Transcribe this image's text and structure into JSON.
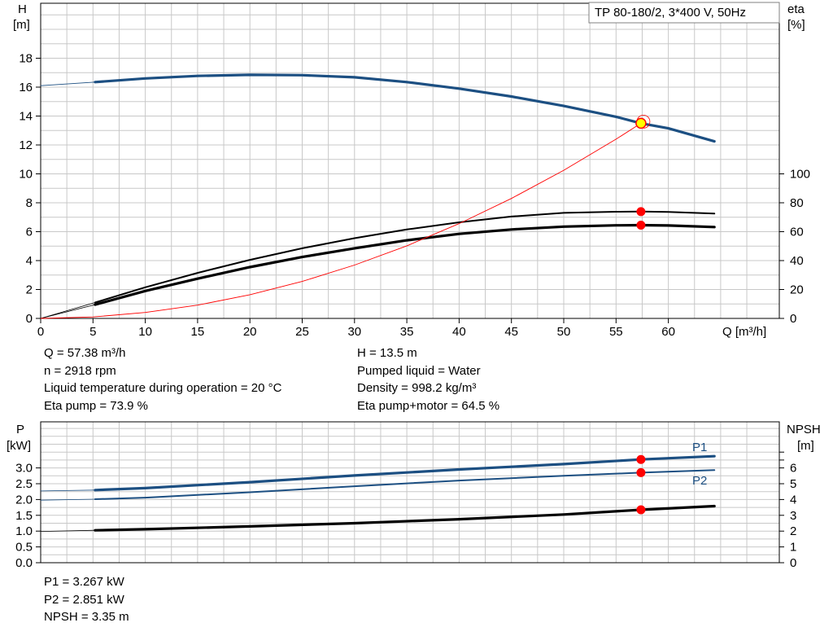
{
  "title_box": "TP 80-180/2, 3*400 V, 50Hz",
  "top_chart": {
    "left_axis": {
      "label_line1": "H",
      "label_line2": "[m]",
      "ticks": [
        "0",
        "2",
        "4",
        "6",
        "8",
        "10",
        "12",
        "14",
        "16",
        "18"
      ]
    },
    "right_axis": {
      "label_line1": "eta",
      "label_line2": "[%]",
      "ticks": [
        "0",
        "20",
        "40",
        "60",
        "80",
        "100"
      ]
    },
    "x_axis": {
      "label": "Q [m³/h]",
      "ticks": [
        "0",
        "5",
        "10",
        "15",
        "20",
        "25",
        "30",
        "35",
        "40",
        "45",
        "50",
        "55",
        "60"
      ]
    }
  },
  "info_left": [
    "Q = 57.38 m³/h",
    "n = 2918 rpm",
    "Liquid temperature during operation = 20 °C",
    "Eta pump = 73.9 %"
  ],
  "info_right": [
    "H = 13.5 m",
    "Pumped liquid = Water",
    "Density = 998.2 kg/m³",
    "Eta pump+motor = 64.5 %"
  ],
  "bottom_chart": {
    "left_axis": {
      "label_line1": "P",
      "label_line2": "[kW]",
      "ticks": [
        "0.0",
        "0.5",
        "1.0",
        "1.5",
        "2.0",
        "2.5",
        "3.0"
      ]
    },
    "right_axis": {
      "label_line1": "NPSH",
      "label_line2": "[m]",
      "ticks": [
        "0",
        "1",
        "2",
        "3",
        "4",
        "5",
        "6"
      ]
    },
    "series_labels": {
      "p1": "P1",
      "p2": "P2"
    }
  },
  "info_bottom": [
    "P1 = 3.267 kW",
    "P2 = 2.851 kW",
    "NPSH = 3.35 m"
  ],
  "colors": {
    "blue": "#1c4f82",
    "black": "#000000",
    "red": "#ff0000",
    "duty_point": "#ffff00",
    "grid": "#c8c8c8"
  },
  "chart_data": [
    {
      "type": "line",
      "title": "TP 80-180/2, 3*400 V, 50Hz",
      "xlabel": "Q [m³/h]",
      "ylabel": "H [m]",
      "y2label": "eta [%]",
      "xlim": [
        0,
        69
      ],
      "ylim": [
        0,
        20
      ],
      "y2lim": [
        0,
        200
      ],
      "grid": true,
      "duty_point": {
        "Q": 57.38,
        "H": 13.5
      },
      "series": [
        {
          "name": "H",
          "axis": "left",
          "color": "#1c4f82",
          "x": [
            0,
            5.2,
            10,
            15,
            20,
            25,
            30,
            35,
            40,
            45,
            50,
            55,
            57.38,
            60,
            64.4
          ],
          "y": [
            16.1,
            16.35,
            16.6,
            16.78,
            16.85,
            16.83,
            16.68,
            16.35,
            15.9,
            15.35,
            14.7,
            13.95,
            13.5,
            13.15,
            12.25
          ]
        },
        {
          "name": "Eta pump",
          "axis": "right",
          "color": "#000000",
          "x": [
            0,
            5.2,
            10,
            15,
            20,
            25,
            30,
            35,
            40,
            45,
            50,
            55,
            57.38,
            60,
            64.4
          ],
          "y": [
            0,
            11,
            21.5,
            31.5,
            40.5,
            48.5,
            55.5,
            61.5,
            66.5,
            70.5,
            73,
            73.8,
            73.9,
            73.7,
            72.5
          ]
        },
        {
          "name": "Eta pump+motor",
          "axis": "right",
          "color": "#000000",
          "x": [
            0,
            5.2,
            10,
            15,
            20,
            25,
            30,
            35,
            40,
            45,
            50,
            55,
            57.38,
            60,
            64.4
          ],
          "y": [
            0,
            9.5,
            19,
            27.5,
            35.5,
            42.5,
            48.5,
            54,
            58.5,
            61.5,
            63.5,
            64.4,
            64.5,
            64.3,
            63.2
          ]
        },
        {
          "name": "System curve",
          "axis": "left",
          "color": "#ff0000",
          "x": [
            0,
            5,
            10,
            15,
            20,
            25,
            30,
            35,
            40,
            45,
            50,
            55,
            57.38
          ],
          "y": [
            0,
            0.1,
            0.41,
            0.92,
            1.64,
            2.56,
            3.69,
            5.02,
            6.56,
            8.3,
            10.25,
            12.4,
            13.5
          ]
        }
      ]
    },
    {
      "type": "line",
      "xlabel": "Q [m³/h]",
      "ylabel": "P [kW]",
      "y2label": "NPSH [m]",
      "xlim": [
        0,
        69
      ],
      "ylim": [
        0,
        3.5
      ],
      "y2lim": [
        0,
        7
      ],
      "grid": true,
      "series": [
        {
          "name": "P1",
          "axis": "left",
          "color": "#1c4f82",
          "x": [
            0,
            5.2,
            10,
            20,
            30,
            40,
            50,
            57.38,
            64.4
          ],
          "y": [
            2.27,
            2.3,
            2.36,
            2.55,
            2.76,
            2.95,
            3.12,
            3.267,
            3.37
          ]
        },
        {
          "name": "P2",
          "axis": "left",
          "color": "#1c4f82",
          "x": [
            0,
            5.2,
            10,
            20,
            30,
            40,
            50,
            57.38,
            64.4
          ],
          "y": [
            1.98,
            2.01,
            2.06,
            2.23,
            2.42,
            2.6,
            2.75,
            2.851,
            2.93
          ]
        },
        {
          "name": "NPSH",
          "axis": "right",
          "color": "#000000",
          "x": [
            0,
            5.2,
            10,
            20,
            30,
            40,
            50,
            57.38,
            64.4
          ],
          "y": [
            1.98,
            2.05,
            2.12,
            2.3,
            2.5,
            2.75,
            3.05,
            3.35,
            3.58
          ]
        }
      ],
      "markers": [
        {
          "series": "P1",
          "x": 57.38,
          "y": 3.267
        },
        {
          "series": "P2",
          "x": 57.38,
          "y": 2.851
        },
        {
          "series": "NPSH",
          "x": 57.38,
          "y": 3.35
        }
      ]
    }
  ]
}
